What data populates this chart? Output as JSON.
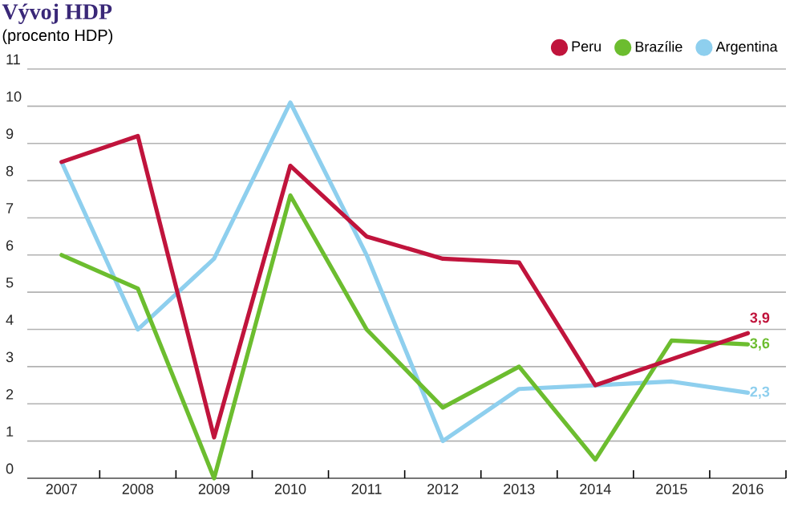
{
  "chart_data": {
    "type": "line",
    "title": "Vývoj HDP",
    "subtitle": "(procento HDP)",
    "categories": [
      "2007",
      "2008",
      "2009",
      "2010",
      "2011",
      "2012",
      "2013",
      "2014",
      "2015",
      "2016"
    ],
    "series": [
      {
        "name": "Peru",
        "color": "#c0143c",
        "values": [
          8.5,
          9.2,
          1.1,
          8.4,
          6.5,
          5.9,
          5.8,
          2.5,
          3.2,
          3.9
        ],
        "value_labels": [
          null,
          null,
          null,
          null,
          null,
          null,
          null,
          null,
          null,
          "3,9"
        ]
      },
      {
        "name": "Brazílie",
        "color": "#6cbd2f",
        "values": [
          6.0,
          5.1,
          0.0,
          7.6,
          4.0,
          1.9,
          3.0,
          0.5,
          3.7,
          3.6
        ],
        "value_labels": [
          null,
          null,
          null,
          null,
          null,
          null,
          null,
          null,
          null,
          "3,6"
        ]
      },
      {
        "name": "Argentina",
        "color": "#8ecfee",
        "values": [
          8.5,
          4.0,
          5.9,
          10.1,
          6.0,
          1.0,
          2.4,
          2.5,
          2.6,
          2.3
        ],
        "value_labels": [
          null,
          null,
          null,
          null,
          null,
          null,
          null,
          null,
          null,
          "2,3"
        ]
      }
    ],
    "ylim": [
      0,
      11
    ],
    "yticks": [
      0,
      1,
      2,
      3,
      4,
      5,
      6,
      7,
      8,
      9,
      10,
      11
    ],
    "grid": "y",
    "legend": "top right",
    "marker": "none",
    "line_style": "solid"
  }
}
